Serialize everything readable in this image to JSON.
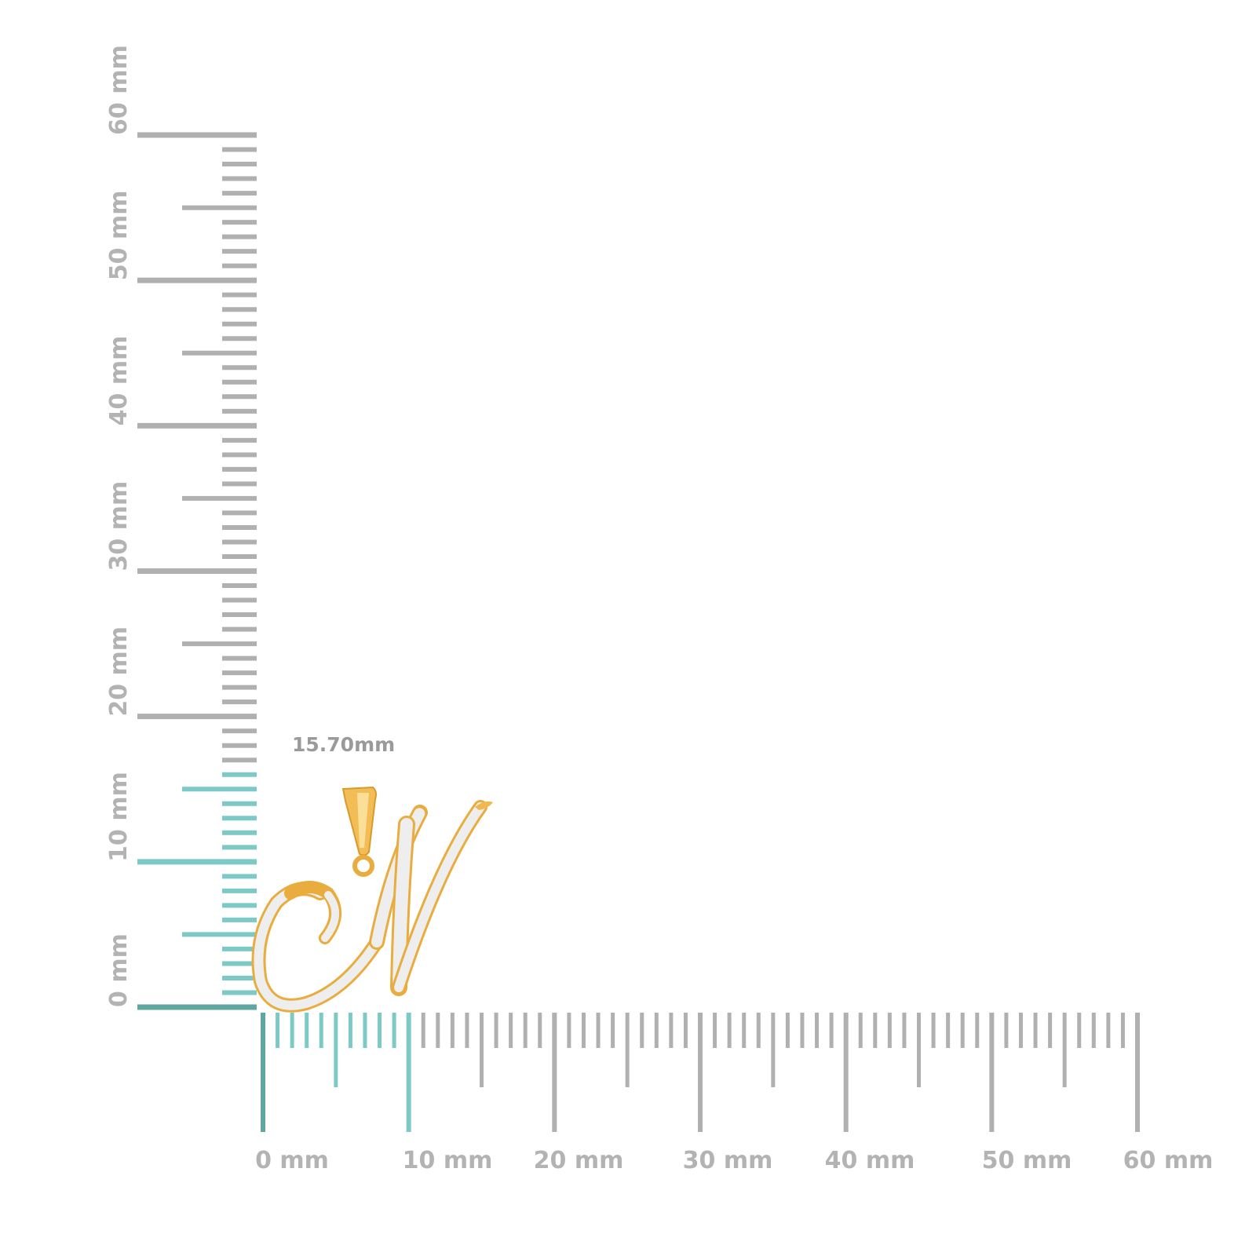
{
  "measurement": {
    "label": "15.70mm",
    "value_mm": 15.7
  },
  "rulers": {
    "unit": "mm",
    "max_mm": 60,
    "vertical_labels": [
      "0 mm",
      "10 mm",
      "20 mm",
      "30 mm",
      "40 mm",
      "50 mm",
      "60 mm"
    ],
    "horizontal_labels": [
      "0 mm",
      "10 mm",
      "20 mm",
      "30 mm",
      "40 mm",
      "50 mm",
      "60 mm"
    ],
    "vertical_highlight_mm": 16,
    "horizontal_highlight_mm": 10
  },
  "colors": {
    "tick": "#b0b0b0",
    "highlight": "#7cc9c6",
    "highlight_dark": "#5fa5a0",
    "gold": "#f0b94f",
    "diamond": "#ececec"
  },
  "product": {
    "type": "script letter N pendant with diamonds"
  }
}
